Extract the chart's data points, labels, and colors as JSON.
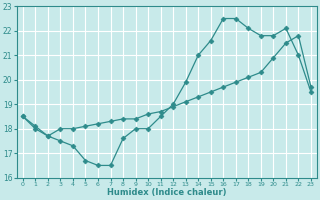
{
  "xlabel": "Humidex (Indice chaleur)",
  "bg_color": "#c8eaea",
  "grid_color": "#ffffff",
  "line_color": "#2e8b8b",
  "xlim": [
    -0.5,
    23.5
  ],
  "ylim": [
    16,
    23
  ],
  "yticks": [
    16,
    17,
    18,
    19,
    20,
    21,
    22,
    23
  ],
  "xticks": [
    0,
    1,
    2,
    3,
    4,
    5,
    6,
    7,
    8,
    9,
    10,
    11,
    12,
    13,
    14,
    15,
    16,
    17,
    18,
    19,
    20,
    21,
    22,
    23
  ],
  "line1_x": [
    0,
    1,
    2,
    3,
    4,
    5,
    6,
    7,
    8,
    9,
    10,
    11,
    12,
    13,
    14,
    15,
    16,
    17,
    18,
    19,
    20,
    21,
    22,
    23
  ],
  "line1_y": [
    18.5,
    18.0,
    17.7,
    17.5,
    17.3,
    16.7,
    16.5,
    16.5,
    17.6,
    18.0,
    18.0,
    18.5,
    19.0,
    19.9,
    21.0,
    21.6,
    22.5,
    22.5,
    22.1,
    21.8,
    21.8,
    22.1,
    21.0,
    19.5
  ],
  "line2_x": [
    0,
    1,
    2,
    3,
    4,
    5,
    6,
    7,
    8,
    9,
    10,
    11,
    12,
    13,
    14,
    15,
    16,
    17,
    18,
    19,
    20,
    21,
    22,
    23
  ],
  "line2_y": [
    18.5,
    18.1,
    17.7,
    18.0,
    18.0,
    18.1,
    18.2,
    18.3,
    18.4,
    18.4,
    18.6,
    18.7,
    18.9,
    19.1,
    19.3,
    19.5,
    19.7,
    19.9,
    20.1,
    20.3,
    20.9,
    21.5,
    21.8,
    19.7
  ],
  "marker": "D",
  "markersize": 2.5
}
